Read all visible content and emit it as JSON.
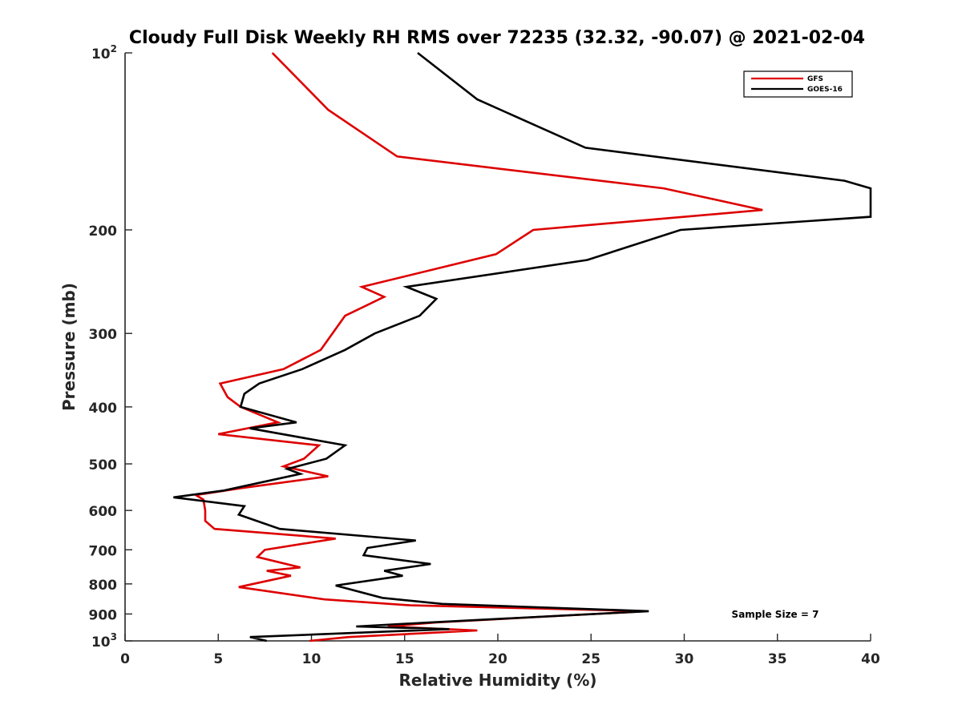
{
  "chart_data": {
    "type": "line",
    "title": "Cloudy Full Disk Weekly RH RMS over 72235 (32.32, -90.07) @ 2021-02-04",
    "xlabel": "Relative Humidity (%)",
    "ylabel": "Pressure (mb)",
    "xlim": [
      0,
      40
    ],
    "ylim": [
      100,
      1000
    ],
    "yscale": "log",
    "yreversed": true,
    "x_ticks": [
      0,
      5,
      10,
      15,
      20,
      25,
      30,
      35,
      40
    ],
    "x_tick_labels": [
      "0",
      "5",
      "10",
      "15",
      "20",
      "25",
      "30",
      "35",
      "40"
    ],
    "y_ticks": [
      100,
      200,
      300,
      400,
      500,
      600,
      700,
      800,
      900,
      1000
    ],
    "y_tick_labels": [
      {
        "base": "10",
        "exp": "2"
      },
      {
        "base": "200",
        "exp": ""
      },
      {
        "base": "300",
        "exp": ""
      },
      {
        "base": "400",
        "exp": ""
      },
      {
        "base": "500",
        "exp": ""
      },
      {
        "base": "600",
        "exp": ""
      },
      {
        "base": "700",
        "exp": ""
      },
      {
        "base": "800",
        "exp": ""
      },
      {
        "base": "900",
        "exp": ""
      },
      {
        "base": "10",
        "exp": "3"
      }
    ],
    "legend_position": "top-right",
    "annotation": "Sample Size = 7",
    "series": [
      {
        "name": "GFS",
        "color": "#dd0000",
        "points": [
          [
            7.9,
            100
          ],
          [
            10.9,
            125
          ],
          [
            14.6,
            150
          ],
          [
            28.9,
            170
          ],
          [
            34.2,
            185
          ],
          [
            21.9,
            200
          ],
          [
            19.9,
            220
          ],
          [
            12.7,
            250
          ],
          [
            13.9,
            260
          ],
          [
            11.8,
            280
          ],
          [
            10.5,
            320
          ],
          [
            8.5,
            345
          ],
          [
            5.1,
            365
          ],
          [
            5.5,
            385
          ],
          [
            6.2,
            400
          ],
          [
            8.2,
            425
          ],
          [
            5.0,
            445
          ],
          [
            10.4,
            465
          ],
          [
            9.6,
            490
          ],
          [
            8.5,
            505
          ],
          [
            10.9,
            525
          ],
          [
            6.2,
            550
          ],
          [
            3.8,
            565
          ],
          [
            4.2,
            575
          ],
          [
            4.3,
            600
          ],
          [
            4.3,
            625
          ],
          [
            4.8,
            645
          ],
          [
            11.3,
            670
          ],
          [
            7.5,
            700
          ],
          [
            7.1,
            720
          ],
          [
            9.4,
            750
          ],
          [
            7.6,
            760
          ],
          [
            8.9,
            775
          ],
          [
            6.1,
            810
          ],
          [
            10.7,
            850
          ],
          [
            15.3,
            870
          ],
          [
            28.0,
            890
          ],
          [
            16.7,
            930
          ],
          [
            14.1,
            945
          ],
          [
            18.9,
            960
          ],
          [
            12.0,
            985
          ],
          [
            9.9,
            1000
          ]
        ]
      },
      {
        "name": "GOES-16",
        "color": "#000000",
        "points": [
          [
            15.7,
            100
          ],
          [
            18.9,
            120
          ],
          [
            24.7,
            145
          ],
          [
            38.6,
            165
          ],
          [
            40.0,
            170
          ],
          [
            40.0,
            190
          ],
          [
            29.8,
            200
          ],
          [
            24.8,
            225
          ],
          [
            15.1,
            250
          ],
          [
            16.7,
            262
          ],
          [
            15.8,
            280
          ],
          [
            13.4,
            300
          ],
          [
            11.8,
            320
          ],
          [
            9.5,
            345
          ],
          [
            7.2,
            365
          ],
          [
            6.4,
            380
          ],
          [
            6.2,
            400
          ],
          [
            9.2,
            425
          ],
          [
            6.7,
            435
          ],
          [
            11.8,
            465
          ],
          [
            10.8,
            490
          ],
          [
            8.7,
            510
          ],
          [
            9.4,
            520
          ],
          [
            5.3,
            555
          ],
          [
            2.6,
            570
          ],
          [
            6.4,
            590
          ],
          [
            6.1,
            610
          ],
          [
            8.3,
            645
          ],
          [
            15.6,
            675
          ],
          [
            13.0,
            695
          ],
          [
            12.8,
            715
          ],
          [
            16.4,
            740
          ],
          [
            13.9,
            760
          ],
          [
            14.9,
            775
          ],
          [
            11.3,
            805
          ],
          [
            13.8,
            845
          ],
          [
            17.0,
            865
          ],
          [
            28.1,
            890
          ],
          [
            16.4,
            930
          ],
          [
            12.4,
            945
          ],
          [
            17.4,
            955
          ],
          [
            6.7,
            985
          ],
          [
            7.6,
            1000
          ]
        ]
      }
    ]
  }
}
